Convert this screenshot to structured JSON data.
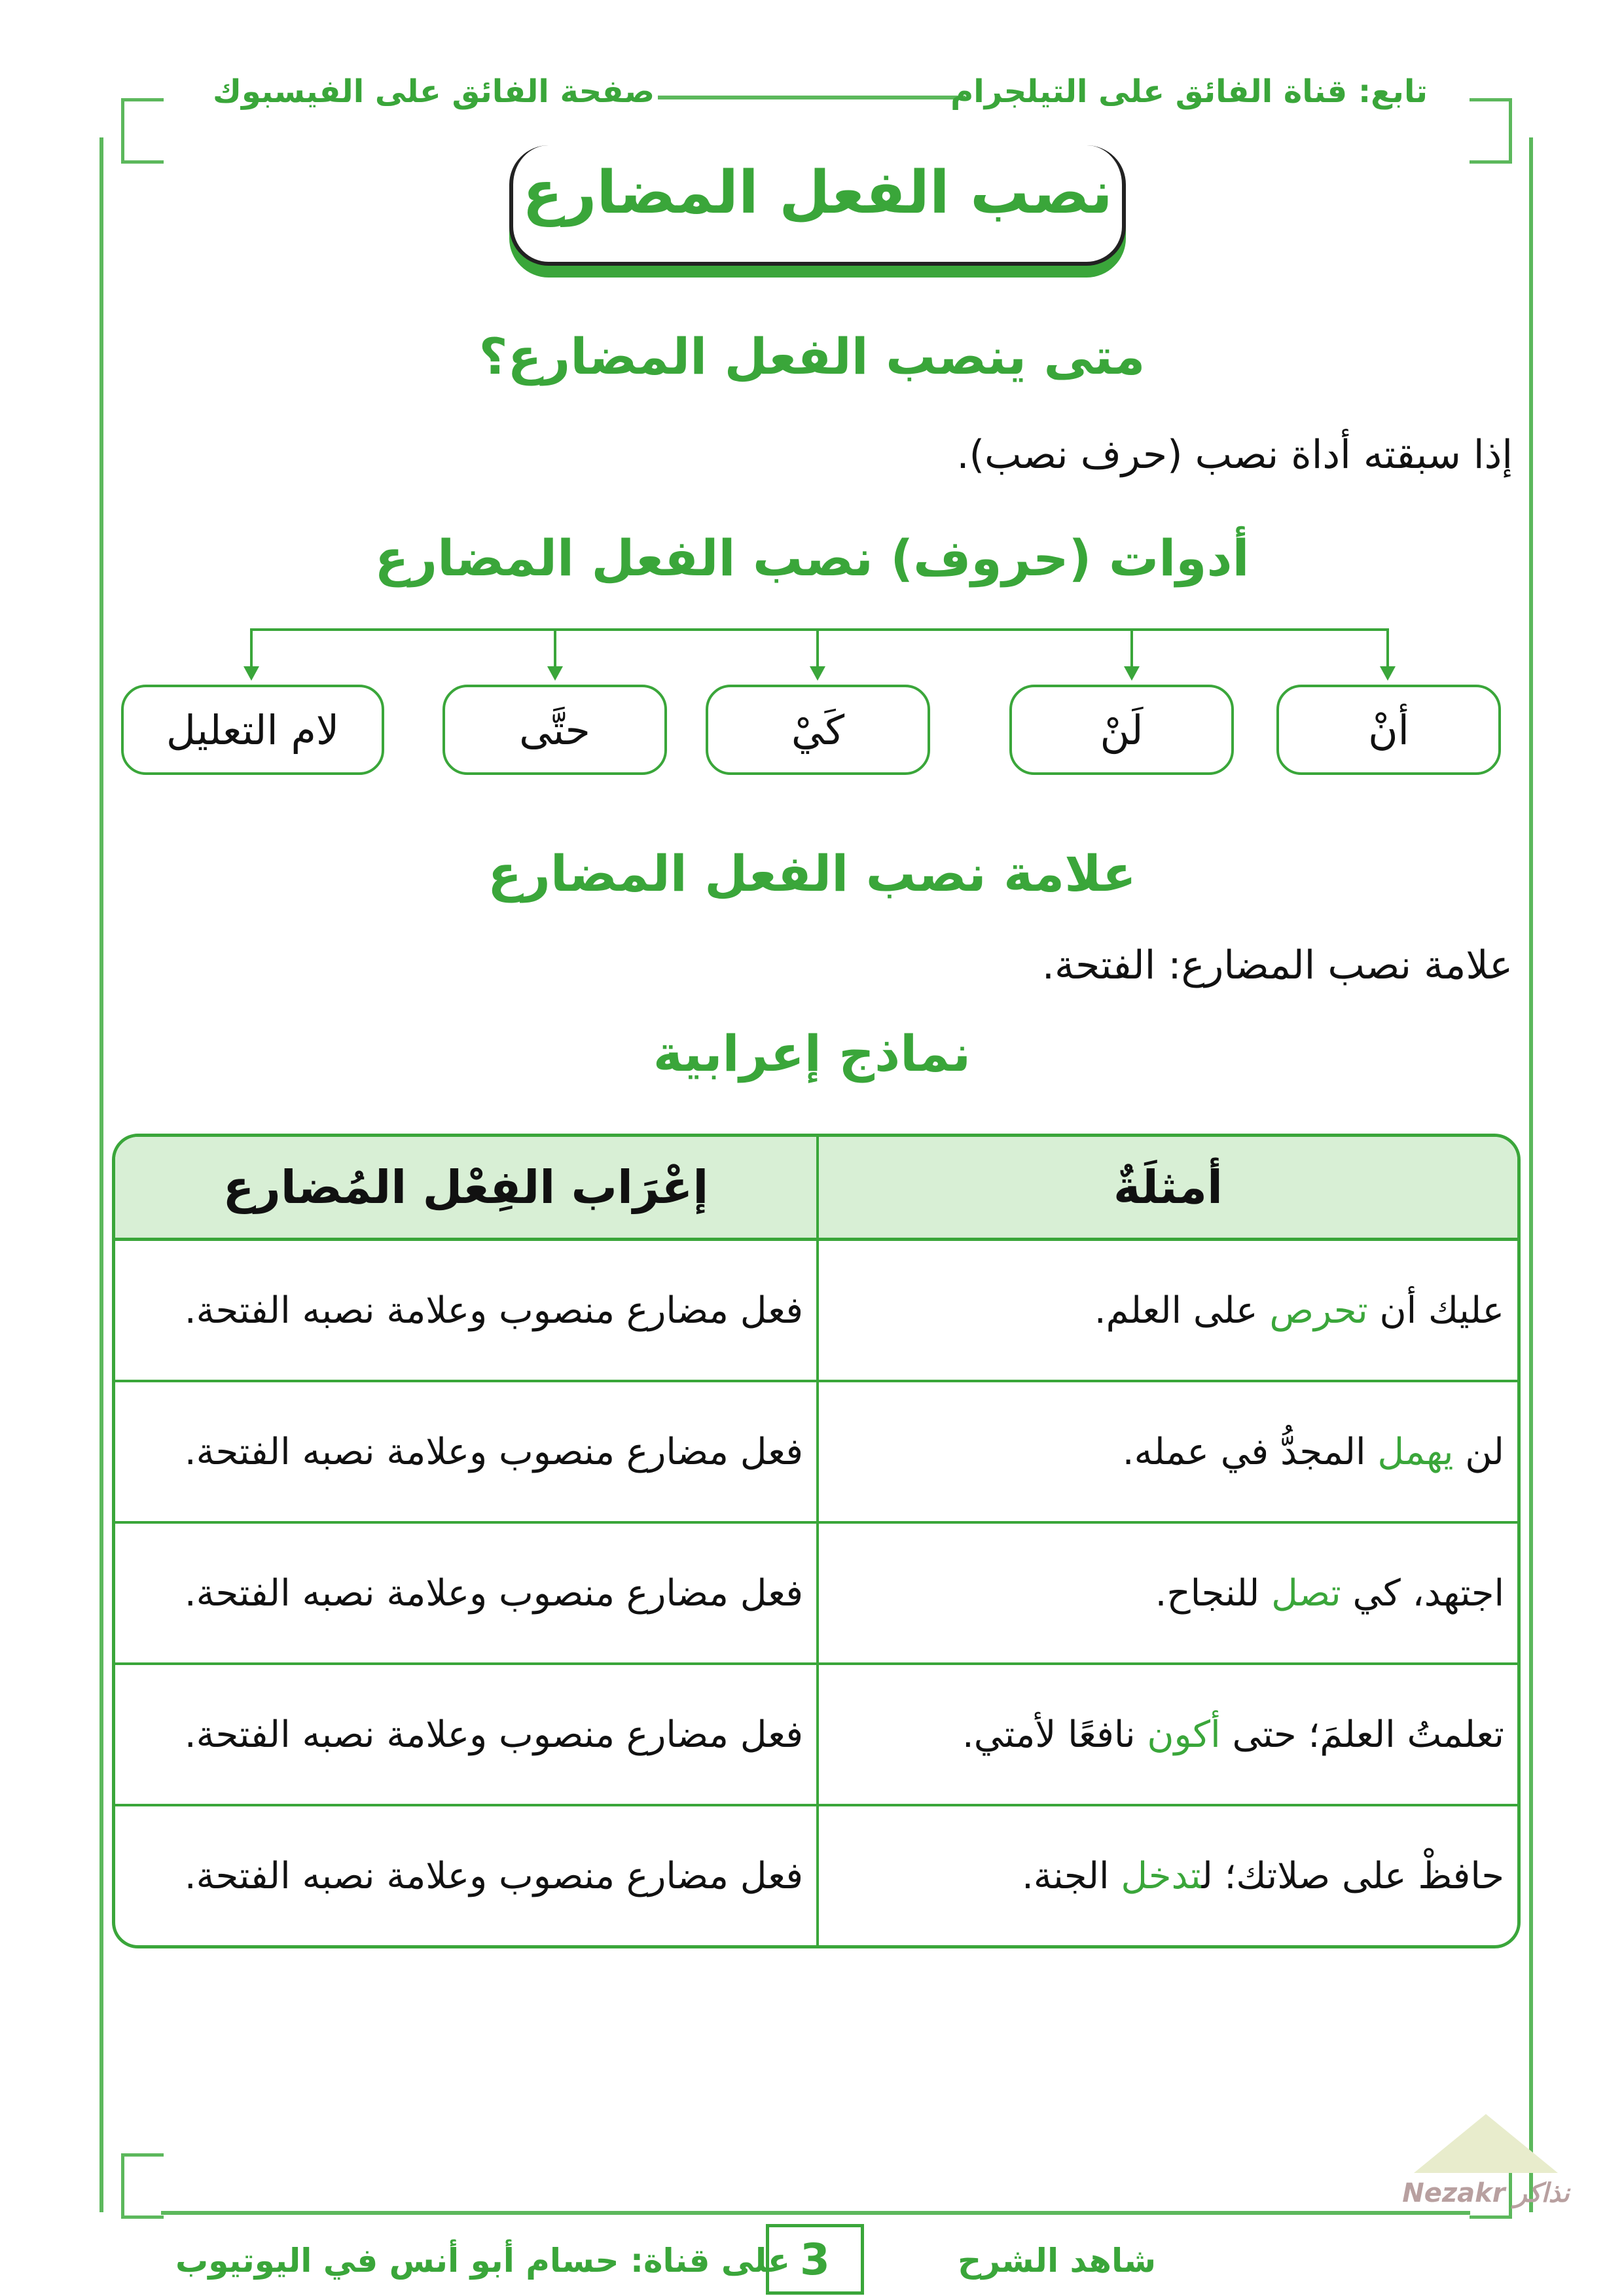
{
  "header": {
    "right_text": "تابع: قناة الفائق على التيلجرام",
    "left_text": "صفحة الفائق على الفيسبوك"
  },
  "title": "نصب الفعل المضارع",
  "section1": {
    "heading": "متى ينصب الفعل المضارع؟",
    "text": "إذا سبقته أداة نصب (حرف نصب)."
  },
  "section2": {
    "heading": "أدوات (حروف) نصب الفعل المضارع",
    "tools": [
      "أنْ",
      "لَنْ",
      "كَيْ",
      "حتَّى",
      "لام التعليل"
    ]
  },
  "section3": {
    "heading": "علامة نصب الفعل المضارع",
    "text": "علامة نصب المضارع: الفتحة."
  },
  "section4": {
    "heading": "نماذج إعرابية"
  },
  "table": {
    "headers": [
      "أمثلَةٌ",
      "إعْرَاب الفِعْل المُضارع"
    ],
    "rows": [
      {
        "pre": "عليك أن ",
        "verb": "تحرص",
        "post": " على العلم.",
        "parse": "فعل مضارع منصوب وعلامة نصبه الفتحة."
      },
      {
        "pre": "لن ",
        "verb": "يهمل",
        "post": " المجدُّ في عمله.",
        "parse": "فعل مضارع منصوب وعلامة نصبه الفتحة."
      },
      {
        "pre": "اجتهد، كي ",
        "verb": "تصل",
        "post": " للنجاح.",
        "parse": "فعل مضارع منصوب وعلامة نصبه الفتحة."
      },
      {
        "pre": "تعلمتُ العلمَ؛ حتى ",
        "verb": "أكون",
        "post": " نافعًا لأمتي.",
        "parse": "فعل مضارع منصوب وعلامة نصبه الفتحة."
      },
      {
        "pre": "حافظْ على صلاتك؛ ل",
        "verb": "تدخل",
        "post": " الجنة.",
        "parse": "فعل مضارع منصوب وعلامة نصبه الفتحة."
      }
    ]
  },
  "footer": {
    "right_text": "شاهد الشرح",
    "left_text": "على قناة: حسام أبو أنس في اليوتيوب",
    "page_number": "3",
    "logo_text": "Nezakr نذاكر"
  },
  "colors": {
    "accent": "#3aa63a",
    "table_header_bg": "#d8efd5"
  }
}
